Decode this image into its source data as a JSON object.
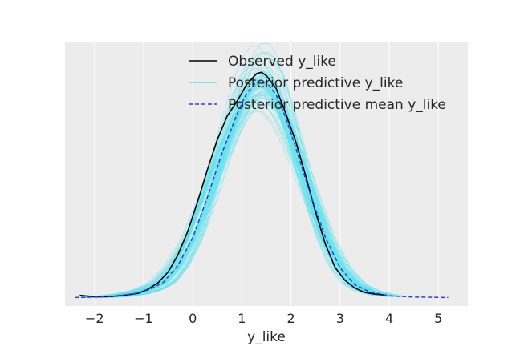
{
  "chart_data": {
    "type": "line",
    "title": "",
    "xlabel": "y_like",
    "ylabel": "",
    "xlim": [
      -2.6,
      5.6
    ],
    "ylim": [
      -0.02,
      0.6
    ],
    "grid": true,
    "y_ticks_shown": false,
    "x_ticks": [
      {
        "value": -2,
        "label": "−2"
      },
      {
        "value": -1,
        "label": "−1"
      },
      {
        "value": 0,
        "label": "0"
      },
      {
        "value": 1,
        "label": "1"
      },
      {
        "value": 2,
        "label": "2"
      },
      {
        "value": 3,
        "label": "3"
      },
      {
        "value": 4,
        "label": "4"
      },
      {
        "value": 5,
        "label": "5"
      }
    ],
    "legend": {
      "placement": "top-center",
      "entries": [
        {
          "name": "Observed y_like",
          "color": "#000000",
          "style": "solid"
        },
        {
          "name": "Posterior predictive y_like",
          "color": "#5CE1ED",
          "style": "solid"
        },
        {
          "name": "Posterior predictive mean y_like",
          "color": "#2F3BE0",
          "style": "dashed"
        }
      ]
    },
    "series": [
      {
        "name": "Observed y_like",
        "color": "#000000",
        "style": "solid",
        "x": [
          -2.3,
          -2.0,
          -1.7,
          -1.4,
          -1.1,
          -0.9,
          -0.7,
          -0.5,
          -0.3,
          -0.1,
          0.1,
          0.3,
          0.5,
          0.7,
          0.9,
          1.1,
          1.3,
          1.4,
          1.5,
          1.7,
          1.9,
          2.1,
          2.3,
          2.5,
          2.7,
          2.9,
          3.1,
          3.3,
          3.5,
          3.7,
          3.9
        ],
        "y": [
          0.005,
          0.002,
          0.002,
          0.005,
          0.01,
          0.02,
          0.035,
          0.06,
          0.1,
          0.155,
          0.225,
          0.3,
          0.37,
          0.425,
          0.46,
          0.5,
          0.525,
          0.528,
          0.52,
          0.49,
          0.43,
          0.365,
          0.285,
          0.2,
          0.125,
          0.07,
          0.04,
          0.022,
          0.012,
          0.008,
          0.006
        ]
      },
      {
        "name": "Posterior predictive mean y_like",
        "color": "#2F3BE0",
        "style": "dashed",
        "x": [
          -2.4,
          -2.0,
          -1.6,
          -1.2,
          -0.9,
          -0.6,
          -0.3,
          0.0,
          0.3,
          0.6,
          0.9,
          1.1,
          1.3,
          1.5,
          1.7,
          1.9,
          2.1,
          2.4,
          2.7,
          3.0,
          3.3,
          3.6,
          4.0,
          4.5,
          5.2
        ],
        "y": [
          0.0,
          0.001,
          0.003,
          0.009,
          0.018,
          0.035,
          0.075,
          0.14,
          0.235,
          0.34,
          0.43,
          0.48,
          0.505,
          0.505,
          0.475,
          0.42,
          0.35,
          0.24,
          0.14,
          0.07,
          0.03,
          0.013,
          0.004,
          0.001,
          0.0
        ]
      }
    ]
  }
}
